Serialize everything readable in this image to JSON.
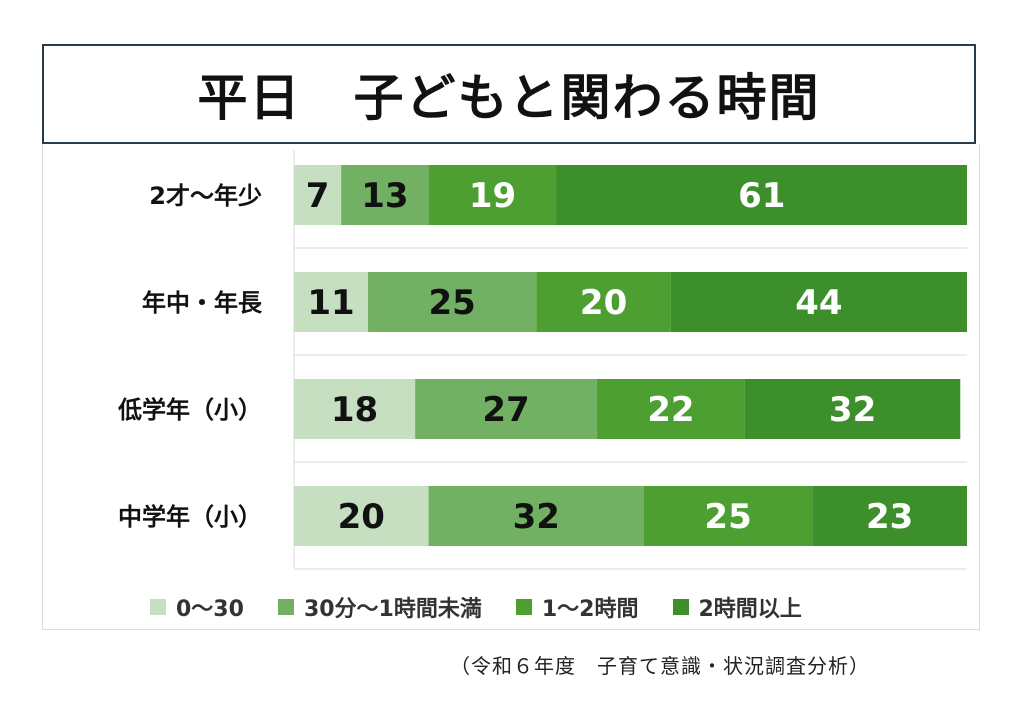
{
  "chart_data": {
    "type": "bar",
    "orientation": "horizontal",
    "stacked": true,
    "title": "平日　子どもと関わる時間",
    "categories": [
      "2才～年少",
      "年中・年長",
      "低学年（小）",
      "中学年（小）"
    ],
    "series": [
      {
        "name": "0～30",
        "color": "#c5dfc0",
        "text_color": "#111111",
        "values": [
          7,
          11,
          18,
          20
        ]
      },
      {
        "name": "30分～1時間未満",
        "color": "#72b163",
        "text_color": "#111111",
        "values": [
          13,
          25,
          27,
          32
        ]
      },
      {
        "name": "1～2時間",
        "color": "#4c9f30",
        "text_color": "#ffffff",
        "values": [
          19,
          20,
          22,
          25
        ]
      },
      {
        "name": "2時間以上",
        "color": "#3d8f2b",
        "text_color": "#ffffff",
        "values": [
          61,
          44,
          32,
          23
        ]
      }
    ],
    "xlim": [
      0,
      100
    ],
    "legend_position": "bottom",
    "grid": true
  },
  "source_note": "（令和６年度　子育て意識・状況調査分析）"
}
